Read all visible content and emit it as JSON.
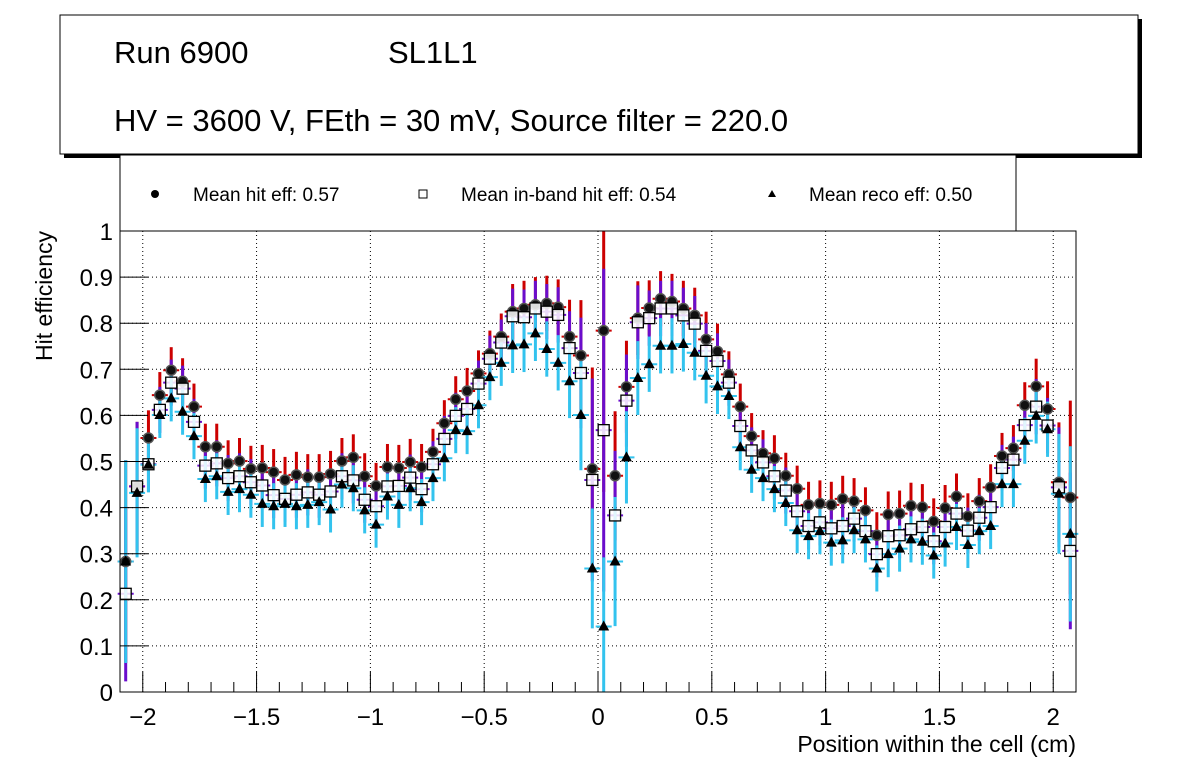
{
  "title_box": {
    "line1_left": "Run 6900",
    "line1_right": "SL1L1",
    "line2": "HV = 3600 V, FEth = 30 mV, Source filter = 220.0"
  },
  "legend": {
    "entries": [
      {
        "marker": "filled-circle",
        "label": "Mean hit  eff: 0.57"
      },
      {
        "marker": "open-square",
        "label": "Mean in-band hit eff: 0.54"
      },
      {
        "marker": "filled-triangle",
        "label": "Mean reco eff: 0.50"
      }
    ]
  },
  "colors": {
    "hit_err": "#cc0000",
    "inband_err": "#6a0dcc",
    "reco_err": "#33c3ee",
    "marker": "#000000",
    "grid": "#000000"
  },
  "chart_data": {
    "type": "scatter",
    "title": "Run 6900  SL1L1 — HV = 3600 V, FEth = 30 mV, Source filter = 220.0",
    "xlabel": "Position within the cell (cm)",
    "ylabel": "Hit efficiency",
    "xlim": [
      -2.1,
      2.1
    ],
    "ylim": [
      0,
      1
    ],
    "x_ticks": [
      "-2",
      "-1.5",
      "-1",
      "-0.5",
      "0",
      "0.5",
      "1",
      "1.5",
      "2"
    ],
    "x_tick_values": [
      -2,
      -1.5,
      -1,
      -0.5,
      0,
      0.5,
      1,
      1.5,
      2
    ],
    "y_ticks": [
      "0",
      "0.1",
      "0.2",
      "0.3",
      "0.4",
      "0.5",
      "0.6",
      "0.7",
      "0.8",
      "0.9",
      "1"
    ],
    "y_tick_values": [
      0,
      0.1,
      0.2,
      0.3,
      0.4,
      0.5,
      0.6,
      0.7,
      0.8,
      0.9,
      1.0
    ],
    "grid": true,
    "legend_position": "top",
    "bin_width": 0.05,
    "x_first": -2.075,
    "series": [
      {
        "name": "Mean hit  eff: 0.57",
        "marker": "filled-circle",
        "values": [
          0.283,
          0.446,
          0.551,
          0.644,
          0.698,
          0.674,
          0.619,
          0.532,
          0.532,
          0.496,
          0.501,
          0.484,
          0.486,
          0.477,
          0.46,
          0.471,
          0.466,
          0.466,
          0.473,
          0.501,
          0.509,
          0.468,
          0.447,
          0.488,
          0.486,
          0.499,
          0.488,
          0.521,
          0.583,
          0.635,
          0.653,
          0.691,
          0.734,
          0.771,
          0.825,
          0.832,
          0.84,
          0.843,
          0.835,
          0.771,
          0.73,
          0.484,
          0.784,
          0.469,
          0.662,
          0.811,
          0.833,
          0.853,
          0.847,
          0.832,
          0.817,
          0.765,
          0.739,
          0.689,
          0.619,
          0.555,
          0.518,
          0.507,
          0.469,
          0.441,
          0.406,
          0.409,
          0.406,
          0.419,
          0.414,
          0.394,
          0.34,
          0.385,
          0.387,
          0.404,
          0.401,
          0.37,
          0.399,
          0.424,
          0.381,
          0.414,
          0.444,
          0.512,
          0.529,
          0.622,
          0.663,
          0.614,
          0.455,
          0.422
        ],
        "errors": [
          0.22,
          0.14,
          0.06,
          0.05,
          0.05,
          0.05,
          0.05,
          0.05,
          0.05,
          0.05,
          0.05,
          0.05,
          0.05,
          0.05,
          0.05,
          0.05,
          0.05,
          0.05,
          0.05,
          0.05,
          0.05,
          0.05,
          0.05,
          0.05,
          0.05,
          0.05,
          0.05,
          0.05,
          0.05,
          0.05,
          0.05,
          0.05,
          0.05,
          0.05,
          0.06,
          0.06,
          0.06,
          0.06,
          0.06,
          0.08,
          0.12,
          0.22,
          0.35,
          0.14,
          0.1,
          0.08,
          0.06,
          0.06,
          0.06,
          0.06,
          0.06,
          0.06,
          0.06,
          0.05,
          0.05,
          0.05,
          0.05,
          0.05,
          0.05,
          0.05,
          0.05,
          0.05,
          0.05,
          0.05,
          0.05,
          0.05,
          0.05,
          0.05,
          0.05,
          0.05,
          0.05,
          0.05,
          0.05,
          0.05,
          0.05,
          0.05,
          0.05,
          0.05,
          0.05,
          0.05,
          0.06,
          0.06,
          0.13,
          0.21
        ]
      },
      {
        "name": "Mean in-band hit eff: 0.54",
        "marker": "open-square",
        "values": [
          0.213,
          0.446,
          0.494,
          0.612,
          0.671,
          0.658,
          0.586,
          0.491,
          0.496,
          0.464,
          0.468,
          0.455,
          0.448,
          0.427,
          0.419,
          0.428,
          0.433,
          0.428,
          0.435,
          0.468,
          0.459,
          0.417,
          0.403,
          0.446,
          0.447,
          0.465,
          0.44,
          0.494,
          0.549,
          0.599,
          0.614,
          0.669,
          0.723,
          0.758,
          0.815,
          0.813,
          0.832,
          0.825,
          0.818,
          0.746,
          0.692,
          0.46,
          0.568,
          0.383,
          0.632,
          0.802,
          0.811,
          0.832,
          0.832,
          0.817,
          0.799,
          0.74,
          0.718,
          0.671,
          0.577,
          0.524,
          0.498,
          0.468,
          0.437,
          0.392,
          0.36,
          0.368,
          0.355,
          0.36,
          0.376,
          0.349,
          0.299,
          0.338,
          0.34,
          0.353,
          0.358,
          0.327,
          0.358,
          0.387,
          0.35,
          0.378,
          0.401,
          0.486,
          0.504,
          0.579,
          0.619,
          0.578,
          0.444,
          0.306
        ],
        "errors": [
          0.19,
          0.14,
          0.06,
          0.05,
          0.05,
          0.05,
          0.05,
          0.05,
          0.05,
          0.05,
          0.05,
          0.05,
          0.05,
          0.05,
          0.05,
          0.05,
          0.05,
          0.05,
          0.05,
          0.05,
          0.05,
          0.05,
          0.05,
          0.05,
          0.05,
          0.05,
          0.05,
          0.05,
          0.05,
          0.05,
          0.05,
          0.05,
          0.05,
          0.05,
          0.06,
          0.06,
          0.06,
          0.06,
          0.06,
          0.08,
          0.12,
          0.22,
          0.35,
          0.14,
          0.1,
          0.08,
          0.06,
          0.06,
          0.06,
          0.06,
          0.06,
          0.06,
          0.06,
          0.05,
          0.05,
          0.05,
          0.05,
          0.05,
          0.05,
          0.05,
          0.05,
          0.05,
          0.05,
          0.05,
          0.05,
          0.05,
          0.05,
          0.05,
          0.05,
          0.05,
          0.05,
          0.05,
          0.05,
          0.05,
          0.05,
          0.05,
          0.05,
          0.05,
          0.05,
          0.05,
          0.06,
          0.06,
          0.13,
          0.17
        ]
      },
      {
        "name": "Mean reco eff: 0.50",
        "marker": "filled-triangle",
        "values": [
          0.283,
          0.432,
          0.493,
          0.601,
          0.637,
          0.608,
          0.555,
          0.462,
          0.468,
          0.434,
          0.44,
          0.428,
          0.408,
          0.403,
          0.408,
          0.403,
          0.406,
          0.412,
          0.396,
          0.45,
          0.442,
          0.394,
          0.363,
          0.424,
          0.406,
          0.442,
          0.412,
          0.464,
          0.507,
          0.568,
          0.566,
          0.622,
          0.683,
          0.714,
          0.752,
          0.754,
          0.778,
          0.744,
          0.714,
          0.674,
          0.601,
          0.268,
          0.142,
          0.283,
          0.509,
          0.681,
          0.711,
          0.751,
          0.751,
          0.755,
          0.736,
          0.686,
          0.663,
          0.642,
          0.531,
          0.482,
          0.464,
          0.44,
          0.41,
          0.351,
          0.338,
          0.349,
          0.324,
          0.329,
          0.351,
          0.331,
          0.268,
          0.299,
          0.311,
          0.331,
          0.326,
          0.296,
          0.322,
          0.358,
          0.319,
          0.349,
          0.36,
          0.451,
          0.451,
          0.545,
          0.599,
          0.57,
          0.43,
          0.343
        ],
        "errors": [
          0.22,
          0.14,
          0.06,
          0.05,
          0.05,
          0.05,
          0.05,
          0.05,
          0.05,
          0.05,
          0.05,
          0.05,
          0.05,
          0.05,
          0.05,
          0.05,
          0.05,
          0.05,
          0.05,
          0.05,
          0.05,
          0.05,
          0.05,
          0.05,
          0.05,
          0.05,
          0.05,
          0.05,
          0.05,
          0.05,
          0.05,
          0.05,
          0.05,
          0.05,
          0.06,
          0.06,
          0.06,
          0.06,
          0.06,
          0.08,
          0.12,
          0.13,
          0.15,
          0.14,
          0.1,
          0.08,
          0.06,
          0.06,
          0.06,
          0.06,
          0.06,
          0.06,
          0.06,
          0.05,
          0.05,
          0.05,
          0.05,
          0.05,
          0.05,
          0.05,
          0.05,
          0.05,
          0.05,
          0.05,
          0.05,
          0.05,
          0.05,
          0.05,
          0.05,
          0.05,
          0.05,
          0.05,
          0.05,
          0.05,
          0.05,
          0.05,
          0.05,
          0.05,
          0.05,
          0.05,
          0.06,
          0.06,
          0.13,
          0.19
        ]
      }
    ]
  }
}
